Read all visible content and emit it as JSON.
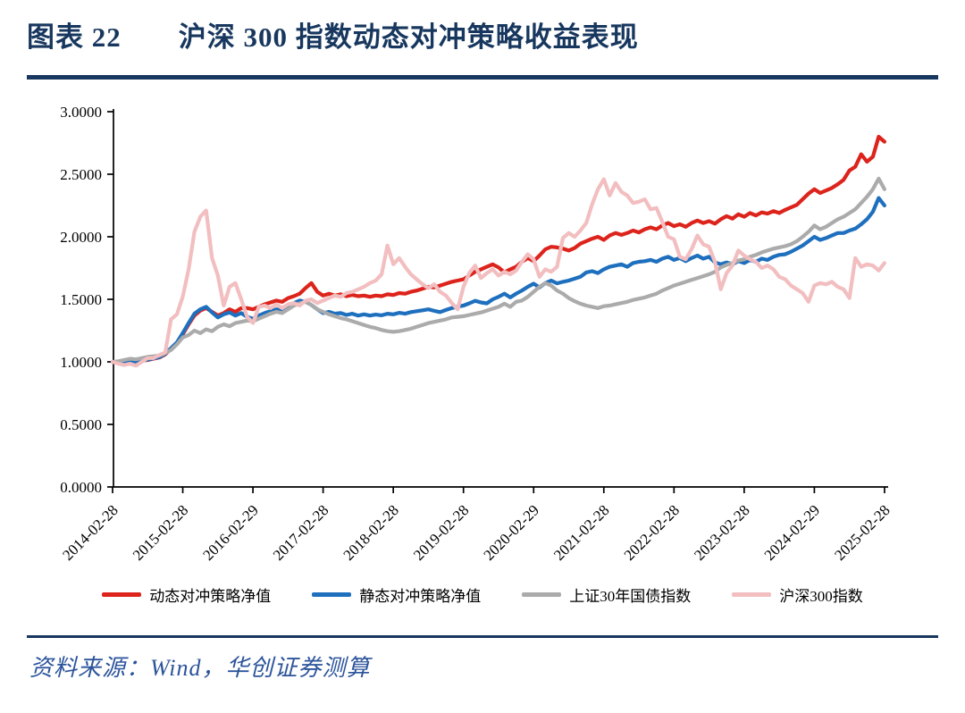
{
  "figure": {
    "label": "图表 22",
    "title": "沪深 300 指数动态对冲策略收益表现"
  },
  "source": {
    "text": "资料来源：Wind，华创证券测算"
  },
  "colors": {
    "header_navy": "#17375E",
    "source_blue": "#2C549B",
    "axis_black": "#000000",
    "series_red": "#DC241C",
    "series_blue": "#1E6FBE",
    "series_gray": "#ABABAB",
    "series_pink": "#F2BEC0"
  },
  "chart_data": {
    "type": "line",
    "title": "沪深300指数动态对冲策略收益表现",
    "xlabel": "",
    "ylabel": "",
    "ylim": [
      0.0,
      3.0
    ],
    "grid": false,
    "legend_position": "bottom",
    "frequency": "monthly",
    "start_month": "2014-02",
    "end_month": "2025-02",
    "y_ticks": [
      0.0,
      0.5,
      1.0,
      1.5,
      2.0,
      2.5,
      3.0
    ],
    "y_tick_labels": [
      "0.0000",
      "0.5000",
      "1.0000",
      "1.5000",
      "2.0000",
      "2.5000",
      "3.0000"
    ],
    "x_tick_labels": [
      "2014-02-28",
      "2015-02-28",
      "2016-02-29",
      "2017-02-28",
      "2018-02-28",
      "2019-02-28",
      "2020-02-29",
      "2021-02-28",
      "2022-02-28",
      "2023-02-28",
      "2024-02-29",
      "2025-02-28"
    ],
    "x_months_per_tick": 12,
    "series": [
      {
        "name": "动态对冲策略净值",
        "color": "#DC241C",
        "values": [
          1.0,
          0.998,
          1.004,
          1.008,
          1.002,
          1.01,
          1.015,
          1.025,
          1.035,
          1.06,
          1.105,
          1.15,
          1.22,
          1.3,
          1.37,
          1.41,
          1.43,
          1.4,
          1.37,
          1.39,
          1.42,
          1.4,
          1.43,
          1.43,
          1.42,
          1.44,
          1.46,
          1.475,
          1.49,
          1.48,
          1.51,
          1.525,
          1.545,
          1.59,
          1.63,
          1.56,
          1.53,
          1.545,
          1.53,
          1.54,
          1.525,
          1.535,
          1.525,
          1.53,
          1.52,
          1.53,
          1.525,
          1.54,
          1.535,
          1.55,
          1.545,
          1.56,
          1.57,
          1.585,
          1.6,
          1.595,
          1.61,
          1.625,
          1.64,
          1.65,
          1.66,
          1.69,
          1.72,
          1.74,
          1.76,
          1.78,
          1.755,
          1.715,
          1.74,
          1.76,
          1.8,
          1.83,
          1.805,
          1.85,
          1.9,
          1.92,
          1.915,
          1.905,
          1.89,
          1.91,
          1.945,
          1.965,
          1.985,
          2.0,
          1.975,
          2.01,
          2.03,
          2.015,
          2.03,
          2.05,
          2.035,
          2.06,
          2.075,
          2.06,
          2.09,
          2.11,
          2.085,
          2.1,
          2.08,
          2.11,
          2.13,
          2.11,
          2.125,
          2.105,
          2.14,
          2.165,
          2.145,
          2.18,
          2.16,
          2.19,
          2.17,
          2.195,
          2.185,
          2.205,
          2.19,
          2.215,
          2.235,
          2.255,
          2.3,
          2.345,
          2.38,
          2.35,
          2.37,
          2.39,
          2.42,
          2.455,
          2.53,
          2.56,
          2.66,
          2.6,
          2.64,
          2.8,
          2.76
        ]
      },
      {
        "name": "静态对冲策略净值",
        "color": "#1E6FBE",
        "values": [
          1.0,
          0.996,
          1.005,
          1.01,
          1.0,
          1.012,
          1.018,
          1.028,
          1.038,
          1.065,
          1.11,
          1.155,
          1.23,
          1.31,
          1.385,
          1.42,
          1.44,
          1.395,
          1.355,
          1.38,
          1.395,
          1.37,
          1.39,
          1.36,
          1.345,
          1.37,
          1.39,
          1.405,
          1.42,
          1.41,
          1.435,
          1.47,
          1.49,
          1.48,
          1.455,
          1.42,
          1.39,
          1.4,
          1.385,
          1.39,
          1.375,
          1.385,
          1.37,
          1.38,
          1.37,
          1.378,
          1.372,
          1.385,
          1.38,
          1.392,
          1.385,
          1.398,
          1.405,
          1.412,
          1.42,
          1.408,
          1.398,
          1.415,
          1.43,
          1.442,
          1.45,
          1.468,
          1.488,
          1.475,
          1.468,
          1.5,
          1.52,
          1.545,
          1.515,
          1.545,
          1.57,
          1.6,
          1.625,
          1.595,
          1.63,
          1.65,
          1.628,
          1.64,
          1.65,
          1.665,
          1.68,
          1.715,
          1.725,
          1.71,
          1.74,
          1.76,
          1.77,
          1.78,
          1.76,
          1.79,
          1.8,
          1.805,
          1.815,
          1.8,
          1.825,
          1.84,
          1.815,
          1.83,
          1.805,
          1.83,
          1.85,
          1.825,
          1.84,
          1.795,
          1.78,
          1.795,
          1.78,
          1.805,
          1.79,
          1.815,
          1.8,
          1.825,
          1.815,
          1.84,
          1.855,
          1.86,
          1.88,
          1.905,
          1.93,
          1.965,
          2.0,
          1.975,
          1.99,
          2.01,
          2.03,
          2.03,
          2.05,
          2.065,
          2.1,
          2.14,
          2.2,
          2.31,
          2.25
        ]
      },
      {
        "name": "上证30年国债指数",
        "color": "#ABABAB",
        "values": [
          1.0,
          1.005,
          1.015,
          1.025,
          1.02,
          1.03,
          1.04,
          1.045,
          1.05,
          1.07,
          1.095,
          1.14,
          1.195,
          1.215,
          1.25,
          1.23,
          1.26,
          1.245,
          1.28,
          1.3,
          1.285,
          1.31,
          1.32,
          1.33,
          1.325,
          1.345,
          1.365,
          1.385,
          1.4,
          1.39,
          1.42,
          1.45,
          1.468,
          1.48,
          1.455,
          1.42,
          1.4,
          1.38,
          1.365,
          1.35,
          1.34,
          1.325,
          1.31,
          1.295,
          1.28,
          1.27,
          1.255,
          1.245,
          1.24,
          1.245,
          1.255,
          1.265,
          1.28,
          1.295,
          1.31,
          1.32,
          1.33,
          1.34,
          1.355,
          1.36,
          1.365,
          1.375,
          1.385,
          1.395,
          1.41,
          1.425,
          1.44,
          1.465,
          1.44,
          1.48,
          1.49,
          1.52,
          1.56,
          1.6,
          1.63,
          1.61,
          1.57,
          1.545,
          1.51,
          1.485,
          1.465,
          1.45,
          1.44,
          1.43,
          1.445,
          1.45,
          1.46,
          1.47,
          1.48,
          1.495,
          1.505,
          1.515,
          1.53,
          1.545,
          1.57,
          1.59,
          1.61,
          1.625,
          1.64,
          1.655,
          1.67,
          1.685,
          1.7,
          1.72,
          1.755,
          1.775,
          1.79,
          1.81,
          1.82,
          1.84,
          1.855,
          1.875,
          1.89,
          1.905,
          1.915,
          1.925,
          1.94,
          1.965,
          2.0,
          2.04,
          2.09,
          2.06,
          2.08,
          2.11,
          2.14,
          2.16,
          2.19,
          2.22,
          2.27,
          2.32,
          2.38,
          2.465,
          2.38
        ]
      },
      {
        "name": "沪深300指数",
        "color": "#F2BEC0",
        "values": [
          1.0,
          0.985,
          0.975,
          0.985,
          0.97,
          1.0,
          1.03,
          1.03,
          1.055,
          1.075,
          1.34,
          1.38,
          1.52,
          1.74,
          2.04,
          2.16,
          2.21,
          1.83,
          1.69,
          1.45,
          1.6,
          1.63,
          1.5,
          1.36,
          1.31,
          1.44,
          1.45,
          1.43,
          1.46,
          1.43,
          1.46,
          1.47,
          1.45,
          1.49,
          1.5,
          1.47,
          1.49,
          1.51,
          1.53,
          1.52,
          1.55,
          1.56,
          1.58,
          1.6,
          1.63,
          1.65,
          1.7,
          1.93,
          1.78,
          1.83,
          1.76,
          1.7,
          1.66,
          1.62,
          1.59,
          1.62,
          1.56,
          1.53,
          1.47,
          1.42,
          1.6,
          1.71,
          1.77,
          1.67,
          1.71,
          1.74,
          1.69,
          1.72,
          1.7,
          1.73,
          1.8,
          1.86,
          1.82,
          1.68,
          1.74,
          1.72,
          1.76,
          1.99,
          2.03,
          2.0,
          2.05,
          2.11,
          2.26,
          2.38,
          2.46,
          2.33,
          2.43,
          2.36,
          2.33,
          2.27,
          2.28,
          2.3,
          2.22,
          2.23,
          2.12,
          2.0,
          1.98,
          1.84,
          1.82,
          1.9,
          2.01,
          1.94,
          1.92,
          1.8,
          1.58,
          1.71,
          1.77,
          1.89,
          1.85,
          1.82,
          1.8,
          1.75,
          1.77,
          1.74,
          1.68,
          1.66,
          1.61,
          1.58,
          1.55,
          1.48,
          1.61,
          1.63,
          1.62,
          1.64,
          1.6,
          1.58,
          1.51,
          1.83,
          1.76,
          1.78,
          1.77,
          1.73,
          1.79
        ]
      }
    ],
    "legend": [
      "动态对冲策略净值",
      "静态对冲策略净值",
      "上证30年国债指数",
      "沪深300指数"
    ]
  }
}
